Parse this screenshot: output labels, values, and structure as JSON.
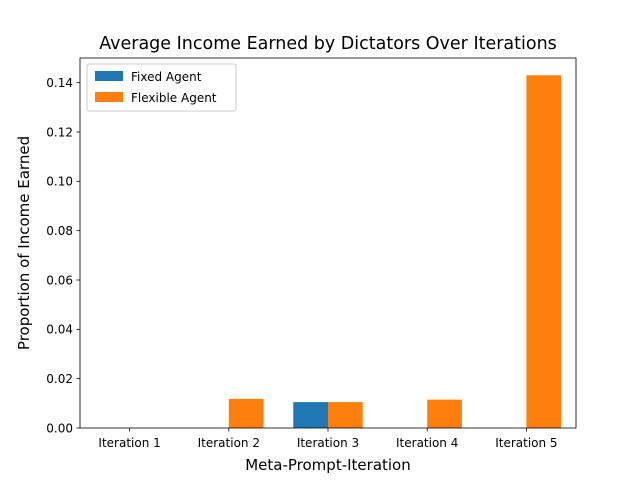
{
  "chart_data": {
    "type": "bar",
    "title": "Average Income Earned by Dictators Over Iterations",
    "xlabel": "Meta-Prompt-Iteration",
    "ylabel": "Proportion of Income Earned",
    "categories": [
      "Iteration 1",
      "Iteration 2",
      "Iteration 3",
      "Iteration 4",
      "Iteration 5"
    ],
    "series": [
      {
        "name": "Fixed Agent",
        "color": "#1f77b4",
        "values": [
          0,
          0,
          0.0105,
          0,
          0
        ]
      },
      {
        "name": "Flexible Agent",
        "color": "#ff7f0e",
        "values": [
          0,
          0.0118,
          0.0105,
          0.0115,
          0.143
        ]
      }
    ],
    "ylim": [
      0,
      0.15
    ],
    "yticks": [
      "0.00",
      "0.02",
      "0.04",
      "0.06",
      "0.08",
      "0.10",
      "0.12",
      "0.14"
    ],
    "grid": false,
    "legend_position": "top-left"
  }
}
